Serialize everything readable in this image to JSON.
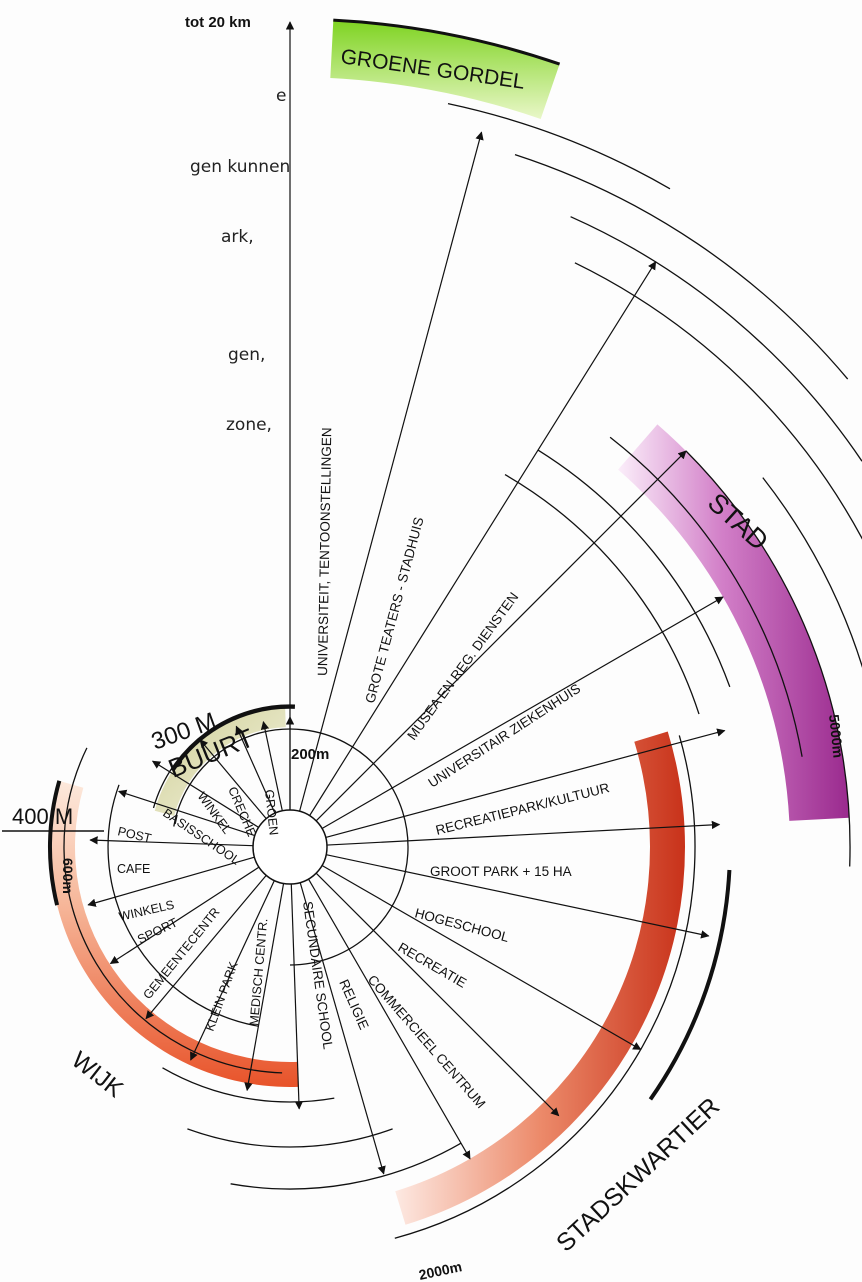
{
  "intro_lines": [
    "e",
    "gen kunnen",
    "ark,",
    "",
    "gen,",
    "zone,"
  ],
  "zones": {
    "groene_gordel": "GROENE GORDEL",
    "stad": "STAD",
    "stadskwartier": "STADSKWARTIER",
    "wijk": "WIJK",
    "buurt": "BUURT",
    "buurt_dist": "300 M",
    "wijk_dist": "400 M"
  },
  "distances": {
    "d20km": "tot 20 km",
    "d5000": "5000m",
    "d2000": "2000m",
    "d600": "600m",
    "d200": "200m"
  },
  "facilities": {
    "universiteit": "UNIVERSITEIT, TENTOONSTELLINGEN",
    "grote_teaters": "GROTE TEATERS - STADHUIS",
    "musea": "MUSEA EN REG. DIENSTEN",
    "ziekenhuis": "UNIVERSITAIR ZIEKENHUIS",
    "recreatiepark": "RECREATIEPARK/KULTUUR",
    "groot_park": "GROOT PARK + 15 HA",
    "hogeschool": "HOGESCHOOL",
    "recreatie": "RECREATIE",
    "commercieel": "COMMERCIEEL CENTRUM",
    "religie": "RELIGIE",
    "secundaire": "SECUNDAIRE SCHOOL",
    "medisch": "MEDISCH CENTR.",
    "klein_park": "KLEIN PARK",
    "gemeente": "GEMEENTECENTR",
    "sport": "SPORT",
    "winkels": "WINKELS",
    "cafe": "CAFE",
    "post": "POST",
    "basisschool": "BASISSCHOOL",
    "winkel": "WINKEL",
    "creche": "CRECHE",
    "groen": "GROEN"
  }
}
